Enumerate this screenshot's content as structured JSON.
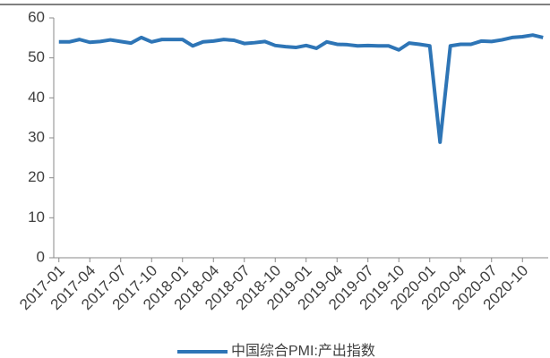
{
  "chart_data": {
    "type": "line",
    "categories": [
      "2017-01",
      null,
      null,
      "2017-04",
      null,
      null,
      "2017-07",
      null,
      null,
      "2017-10",
      null,
      null,
      "2018-01",
      null,
      null,
      "2018-04",
      null,
      null,
      "2018-07",
      null,
      null,
      "2018-10",
      null,
      null,
      "2019-01",
      null,
      null,
      "2019-04",
      null,
      null,
      "2019-07",
      null,
      null,
      "2019-10",
      null,
      null,
      "2020-01",
      null,
      null,
      "2020-04",
      null,
      null,
      "2020-07",
      null,
      null,
      "2020-10",
      null,
      null
    ],
    "series": [
      {
        "name": "中国综合PMI:产出指数",
        "color": "#2e75b6",
        "values": [
          54.0,
          54.0,
          54.6,
          53.9,
          54.1,
          54.5,
          54.1,
          53.7,
          55.1,
          54.0,
          54.6,
          54.6,
          54.6,
          53.0,
          54.0,
          54.2,
          54.6,
          54.4,
          53.6,
          53.8,
          54.1,
          53.1,
          52.8,
          52.6,
          53.1,
          52.4,
          54.0,
          53.4,
          53.3,
          53.0,
          53.1,
          53.0,
          53.0,
          52.0,
          53.7,
          53.4,
          53.0,
          28.9,
          53.0,
          53.4,
          53.4,
          54.2,
          54.1,
          54.5,
          55.1,
          55.3,
          55.7,
          55.1
        ]
      }
    ],
    "ylim": [
      0,
      60
    ],
    "yticks": [
      0,
      10,
      20,
      30,
      40,
      50,
      60
    ],
    "legend": "bottom"
  }
}
